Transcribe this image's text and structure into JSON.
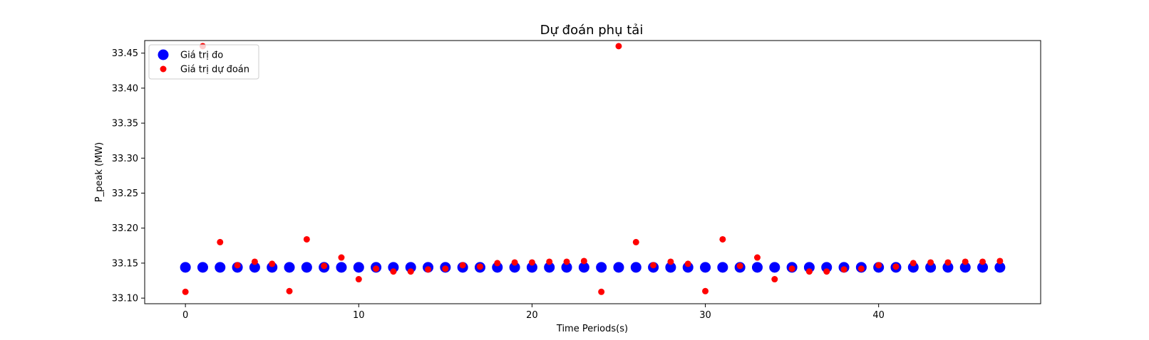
{
  "chart_data": {
    "type": "scatter",
    "title": "Dự đoán phụ tải",
    "xlabel": "Time Periods(s)",
    "ylabel": "P_peak (MW)",
    "xlim": [
      -2.35,
      49.35
    ],
    "ylim": [
      33.092,
      33.468
    ],
    "xticks": [
      0,
      10,
      20,
      30,
      40
    ],
    "yticks": [
      33.1,
      33.15,
      33.2,
      33.25,
      33.3,
      33.35,
      33.4,
      33.45
    ],
    "ytick_labels": [
      "33.10",
      "33.15",
      "33.20",
      "33.25",
      "33.30",
      "33.35",
      "33.40",
      "33.45"
    ],
    "grid": false,
    "legend": {
      "placement": "top-left"
    },
    "x": [
      0,
      1,
      2,
      3,
      4,
      5,
      6,
      7,
      8,
      9,
      10,
      11,
      12,
      13,
      14,
      15,
      16,
      17,
      18,
      19,
      20,
      21,
      22,
      23,
      24,
      25,
      26,
      27,
      28,
      29,
      30,
      31,
      32,
      33,
      34,
      35,
      36,
      37,
      38,
      39,
      40,
      41,
      42,
      43,
      44,
      45,
      46,
      47
    ],
    "series": [
      {
        "name": "Giá trị đo",
        "color": "#0000ff",
        "marker": "large",
        "values": [
          33.144,
          33.144,
          33.144,
          33.144,
          33.144,
          33.144,
          33.144,
          33.144,
          33.144,
          33.144,
          33.144,
          33.144,
          33.144,
          33.144,
          33.144,
          33.144,
          33.144,
          33.144,
          33.144,
          33.144,
          33.144,
          33.144,
          33.144,
          33.144,
          33.144,
          33.144,
          33.144,
          33.144,
          33.144,
          33.144,
          33.144,
          33.144,
          33.144,
          33.144,
          33.144,
          33.144,
          33.144,
          33.144,
          33.144,
          33.144,
          33.144,
          33.144,
          33.144,
          33.144,
          33.144,
          33.144,
          33.144,
          33.144
        ]
      },
      {
        "name": "Giá trị dự đoán",
        "color": "#ff0000",
        "marker": "small",
        "values": [
          33.109,
          33.46,
          33.18,
          33.147,
          33.152,
          33.149,
          33.11,
          33.184,
          33.146,
          33.158,
          33.127,
          33.142,
          33.138,
          33.138,
          33.141,
          33.142,
          33.147,
          33.145,
          33.15,
          33.151,
          33.151,
          33.152,
          33.152,
          33.153,
          33.109,
          33.46,
          33.18,
          33.147,
          33.152,
          33.149,
          33.11,
          33.184,
          33.146,
          33.158,
          33.127,
          33.142,
          33.138,
          33.138,
          33.141,
          33.142,
          33.147,
          33.145,
          33.15,
          33.151,
          33.151,
          33.152,
          33.152,
          33.153
        ]
      }
    ]
  }
}
